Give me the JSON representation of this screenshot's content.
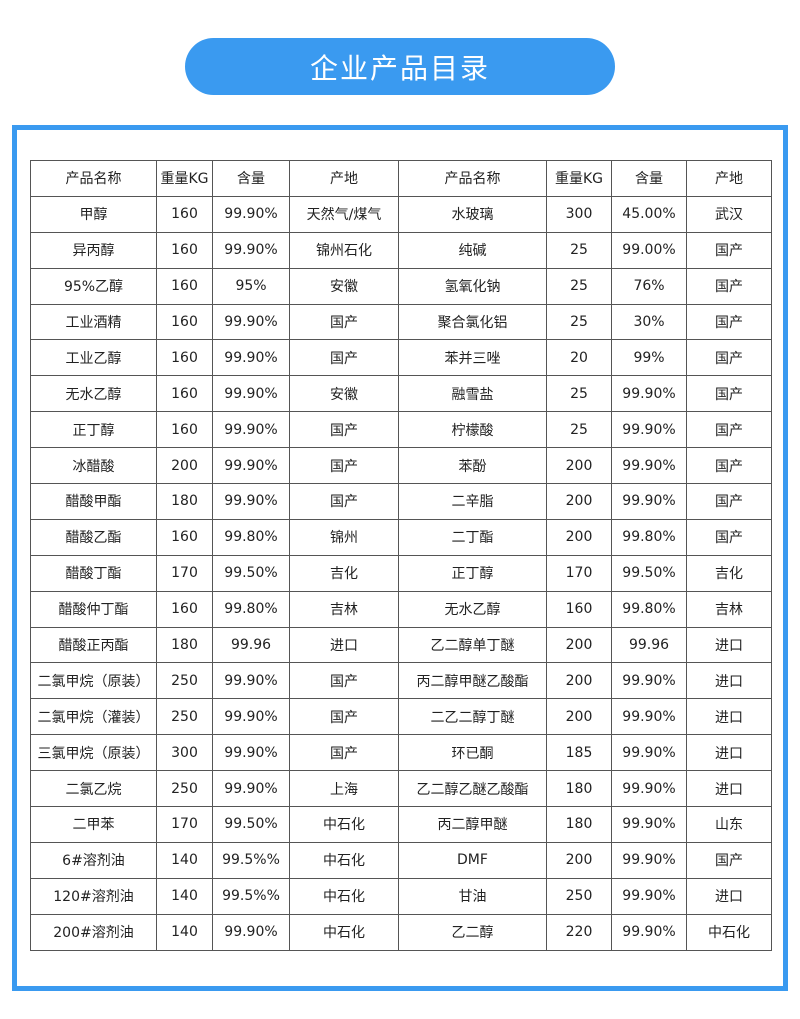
{
  "title": "企业产品目录",
  "headers": [
    "产品名称",
    "重量KG",
    "含量",
    "产地",
    "产品名称",
    "重量KG",
    "含量",
    "产地"
  ],
  "rows": [
    [
      "甲醇",
      "160",
      "99.90%",
      "天然气/煤气",
      "水玻璃",
      "300",
      "45.00%",
      "武汉"
    ],
    [
      "异丙醇",
      "160",
      "99.90%",
      "锦州石化",
      "纯碱",
      "25",
      "99.00%",
      "国产"
    ],
    [
      "95%乙醇",
      "160",
      "95%",
      "安徽",
      "氢氧化钠",
      "25",
      "76%",
      "国产"
    ],
    [
      "工业酒精",
      "160",
      "99.90%",
      "国产",
      "聚合氯化铝",
      "25",
      "30%",
      "国产"
    ],
    [
      "工业乙醇",
      "160",
      "99.90%",
      "国产",
      "苯并三唑",
      "20",
      "99%",
      "国产"
    ],
    [
      "无水乙醇",
      "160",
      "99.90%",
      "安徽",
      "融雪盐",
      "25",
      "99.90%",
      "国产"
    ],
    [
      "正丁醇",
      "160",
      "99.90%",
      "国产",
      "柠檬酸",
      "25",
      "99.90%",
      "国产"
    ],
    [
      "冰醋酸",
      "200",
      "99.90%",
      "国产",
      "苯酚",
      "200",
      "99.90%",
      "国产"
    ],
    [
      "醋酸甲酯",
      "180",
      "99.90%",
      "国产",
      "二辛脂",
      "200",
      "99.90%",
      "国产"
    ],
    [
      "醋酸乙酯",
      "160",
      "99.80%",
      "锦州",
      "二丁酯",
      "200",
      "99.80%",
      "国产"
    ],
    [
      "醋酸丁酯",
      "170",
      "99.50%",
      "吉化",
      "正丁醇",
      "170",
      "99.50%",
      "吉化"
    ],
    [
      "醋酸仲丁酯",
      "160",
      "99.80%",
      "吉林",
      "无水乙醇",
      "160",
      "99.80%",
      "吉林"
    ],
    [
      "醋酸正丙酯",
      "180",
      "99.96",
      "进口",
      "乙二醇单丁醚",
      "200",
      "99.96",
      "进口"
    ],
    [
      "二氯甲烷（原装）",
      "250",
      "99.90%",
      "国产",
      "丙二醇甲醚乙酸酯",
      "200",
      "99.90%",
      "进口"
    ],
    [
      "二氯甲烷（灌装）",
      "250",
      "99.90%",
      "国产",
      "二乙二醇丁醚",
      "200",
      "99.90%",
      "进口"
    ],
    [
      "三氯甲烷（原装）",
      "300",
      "99.90%",
      "国产",
      "环已酮",
      "185",
      "99.90%",
      "进口"
    ],
    [
      "二氯乙烷",
      "250",
      "99.90%",
      "上海",
      "乙二醇乙醚乙酸酯",
      "180",
      "99.90%",
      "进口"
    ],
    [
      "二甲苯",
      "170",
      "99.50%",
      "中石化",
      "丙二醇甲醚",
      "180",
      "99.90%",
      "山东"
    ],
    [
      "6#溶剂油",
      "140",
      "99.5%%",
      "中石化",
      "DMF",
      "200",
      "99.90%",
      "国产"
    ],
    [
      "120#溶剂油",
      "140",
      "99.5%%",
      "中石化",
      "甘油",
      "250",
      "99.90%",
      "进口"
    ],
    [
      "200#溶剂油",
      "140",
      "99.90%",
      "中石化",
      "乙二醇",
      "220",
      "99.90%",
      "中石化"
    ]
  ],
  "colors": {
    "accent": "#3a9af0"
  }
}
